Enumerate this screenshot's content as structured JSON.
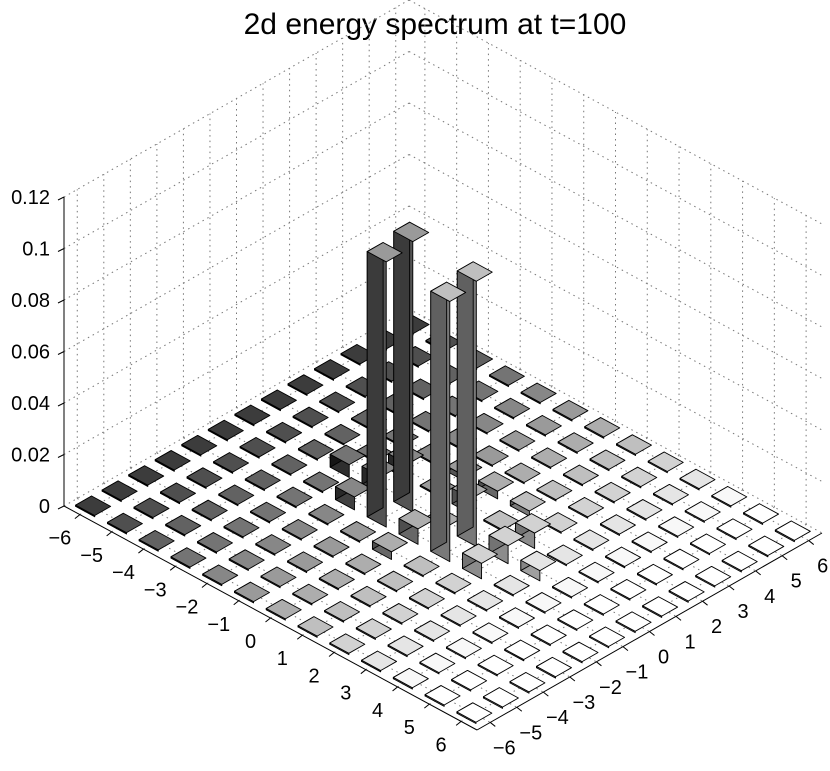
{
  "chart_data": {
    "type": "bar3d",
    "title": "2d energy spectrum at t=100",
    "xlabel": "",
    "ylabel": "",
    "zlabel": "",
    "x_ticks": [
      "−6",
      "−5",
      "−4",
      "−3",
      "−2",
      "−1",
      "0",
      "1",
      "2",
      "3",
      "4",
      "5",
      "6"
    ],
    "y_ticks": [
      "−6",
      "−5",
      "−4",
      "−3",
      "−2",
      "−1",
      "0",
      "1",
      "2",
      "3",
      "4",
      "5",
      "6"
    ],
    "z_ticks": [
      "0",
      "0.02",
      "0.04",
      "0.06",
      "0.08",
      "0.1",
      "0.12"
    ],
    "zlim": [
      0,
      0.12
    ],
    "grid": true,
    "kx_range": [
      -6,
      6
    ],
    "ky_range": [
      -6,
      6
    ],
    "bars": [
      {
        "kx": -1,
        "ky": 0,
        "value": 0.105
      },
      {
        "kx": -1,
        "ky": -1,
        "value": 0.103
      },
      {
        "kx": 1,
        "ky": 0,
        "value": 0.103
      },
      {
        "kx": 1,
        "ky": -1,
        "value": 0.101
      },
      {
        "kx": -2,
        "ky": 0,
        "value": 0.007
      },
      {
        "kx": -2,
        "ky": 1,
        "value": 0.006
      },
      {
        "kx": -2,
        "ky": -1,
        "value": 0.005
      },
      {
        "kx": 2,
        "ky": 0,
        "value": 0.007
      },
      {
        "kx": 2,
        "ky": -1,
        "value": 0.006
      },
      {
        "kx": 2,
        "ky": 1,
        "value": 0.006
      },
      {
        "kx": 0,
        "ky": 1,
        "value": 0.006
      },
      {
        "kx": 0,
        "ky": -1,
        "value": 0.006
      },
      {
        "kx": -3,
        "ky": 0,
        "value": 0.005
      },
      {
        "kx": 3,
        "ky": 0,
        "value": 0.004
      },
      {
        "kx": 0,
        "ky": 2,
        "value": 0.003
      },
      {
        "kx": 0,
        "ky": -2,
        "value": 0.003
      },
      {
        "kx": -1,
        "ky": 2,
        "value": 0.002
      },
      {
        "kx": 1,
        "ky": 2,
        "value": 0.002
      }
    ],
    "background_value": 0.0005
  }
}
